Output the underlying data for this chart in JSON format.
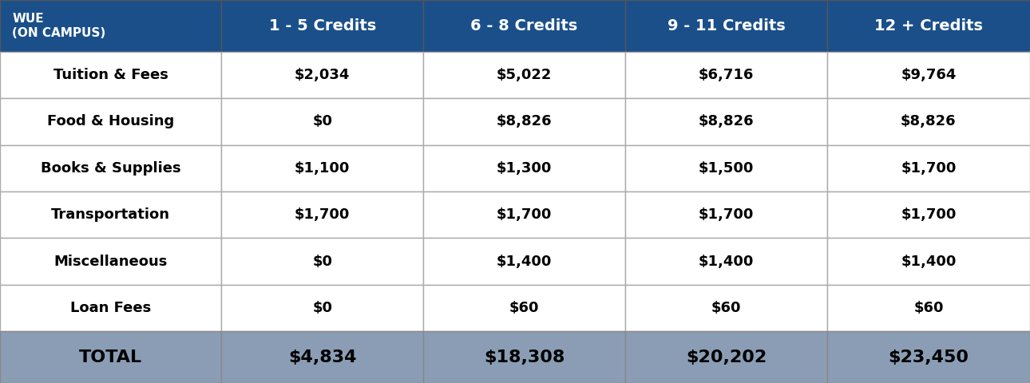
{
  "header_bg": "#1a4f8a",
  "header_text_color": "#ffffff",
  "row_bg": "#ffffff",
  "total_bg": "#8a9db5",
  "border_color": "#aaaaaa",
  "col0_header_line1": "WUE",
  "col0_header_line2": "(ON CAMPUS)",
  "col_headers": [
    "1 - 5 Credits",
    "6 - 8 Credits",
    "9 - 11 Credits",
    "12 + Credits"
  ],
  "row_labels": [
    "Tuition & Fees",
    "Food & Housing",
    "Books & Supplies",
    "Transportation",
    "Miscellaneous",
    "Loan Fees"
  ],
  "data": [
    [
      "$2,034",
      "$5,022",
      "$6,716",
      "$9,764"
    ],
    [
      "$0",
      "$8,826",
      "$8,826",
      "$8,826"
    ],
    [
      "$1,100",
      "$1,300",
      "$1,500",
      "$1,700"
    ],
    [
      "$1,700",
      "$1,700",
      "$1,700",
      "$1,700"
    ],
    [
      "$0",
      "$1,400",
      "$1,400",
      "$1,400"
    ],
    [
      "$0",
      "$60",
      "$60",
      "$60"
    ]
  ],
  "total_label": "TOTAL",
  "total_values": [
    "$4,834",
    "$18,308",
    "$20,202",
    "$23,450"
  ],
  "figsize": [
    12.9,
    4.8
  ],
  "dpi": 100
}
